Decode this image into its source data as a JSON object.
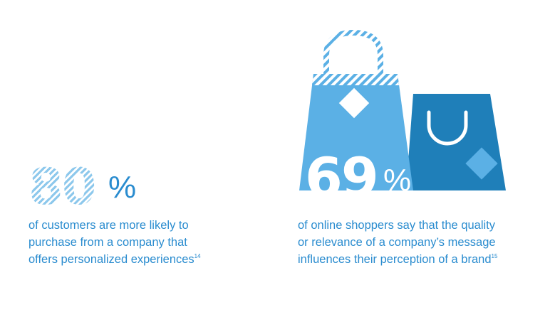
{
  "stat_left": {
    "value": "80",
    "percent_sign": "%",
    "line1": "of customers are more likely to",
    "line2": "purchase from a company that",
    "line3": "offers personalized experiences",
    "footnote": "14"
  },
  "stat_right": {
    "value": "69",
    "percent_sign": "%",
    "line1": "of online shoppers say that the quality",
    "line2": "or relevance of a company’s message",
    "line3": "influences their perception of a brand",
    "footnote": "15"
  },
  "colors": {
    "dark_blue": "#1f7fb9",
    "mid_blue": "#2a8ccf",
    "light_blue": "#5bb0e5",
    "stripe_blue": "#8dc8ec"
  },
  "icons": [
    "shopping-bag-icon",
    "shopping-bag-icon",
    "price-tag-icon"
  ]
}
